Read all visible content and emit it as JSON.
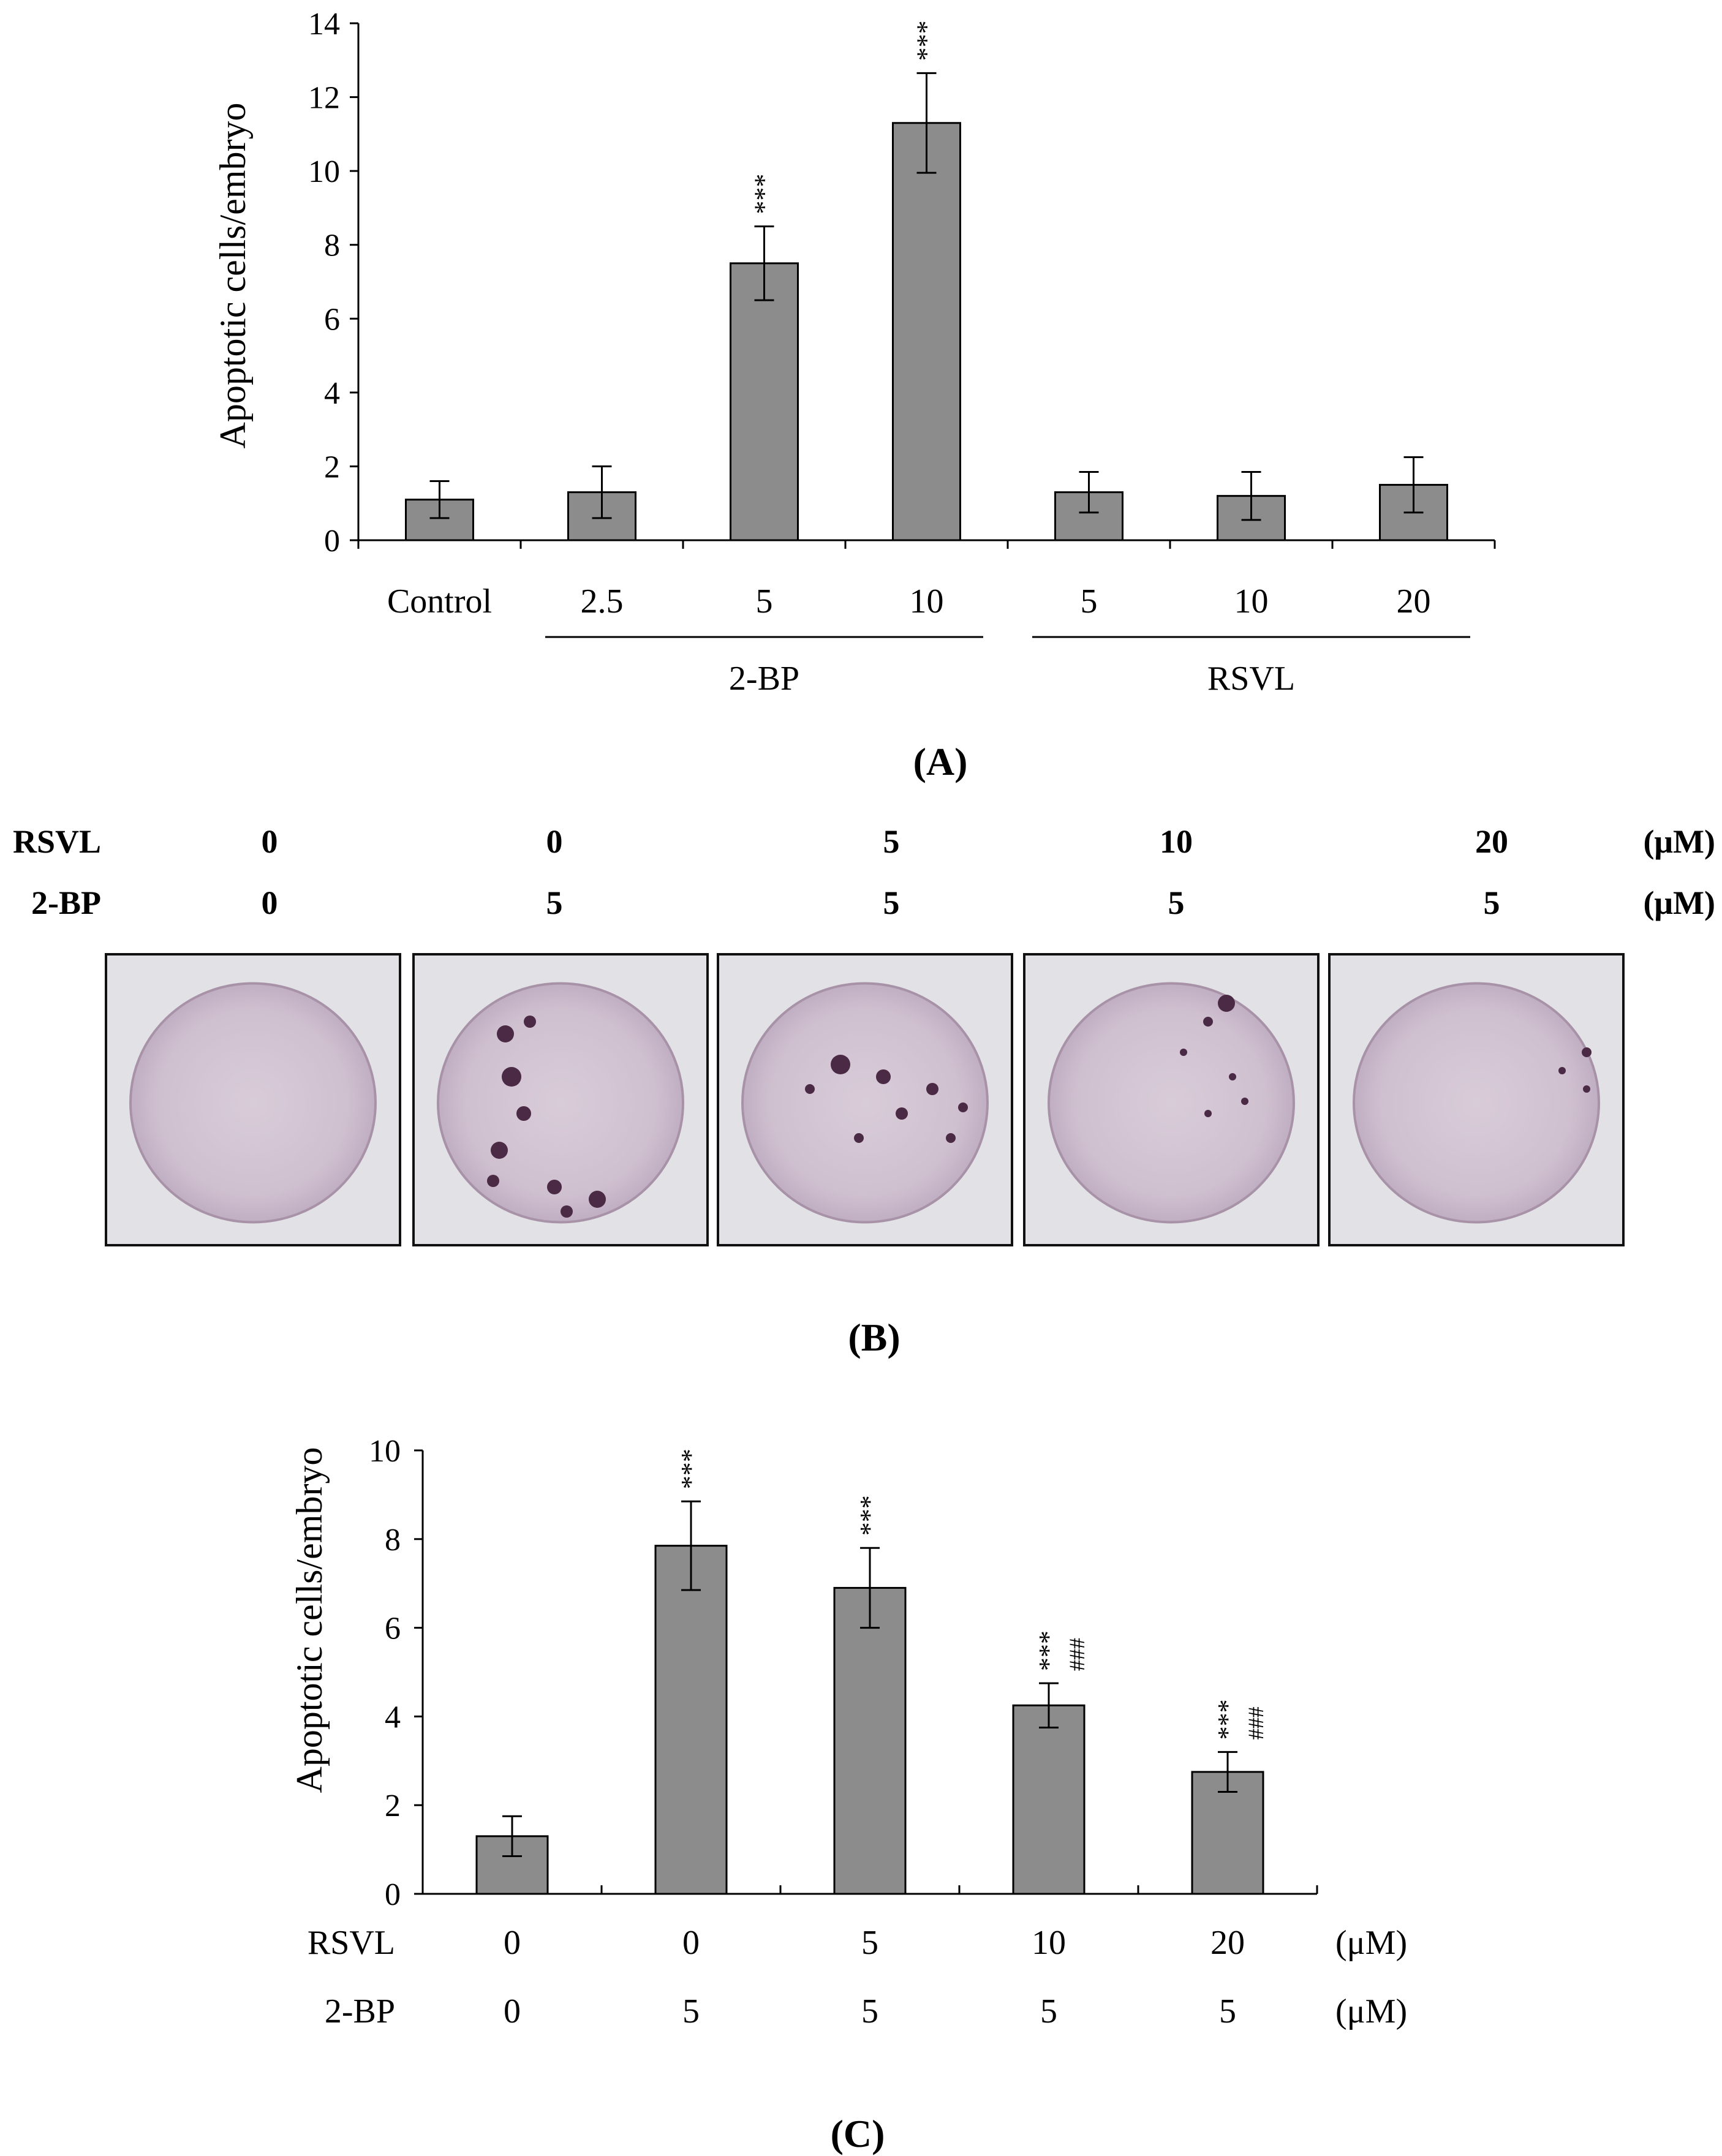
{
  "chart_data": [
    {
      "type": "bar",
      "panel": "(A)",
      "ylabel": "Apoptotic cells/embryo",
      "ylim": [
        0,
        14
      ],
      "yticks": [
        "0",
        "2",
        "4",
        "6",
        "8",
        "10",
        "12",
        "14"
      ],
      "categories": [
        "Control",
        "2.5",
        "5",
        "10",
        "5",
        "10",
        "20"
      ],
      "groups": [
        {
          "label": "2-BP",
          "from": 1,
          "to": 3
        },
        {
          "label": "RSVL",
          "from": 4,
          "to": 6
        }
      ],
      "values": [
        1.1,
        1.3,
        7.5,
        11.3,
        1.3,
        1.2,
        1.5
      ],
      "errors": [
        0.5,
        0.7,
        1.0,
        1.35,
        0.55,
        0.65,
        0.75
      ],
      "annotations": [
        "",
        "",
        "***",
        "***",
        "",
        "",
        ""
      ],
      "bar_color": "#8c8c8c"
    },
    {
      "type": "bar",
      "panel": "(C)",
      "ylabel": "Apoptotic cells/embryo",
      "ylim": [
        0,
        10
      ],
      "yticks": [
        "0",
        "2",
        "4",
        "6",
        "8",
        "10"
      ],
      "row_labels": [
        "RSVL",
        "2-BP"
      ],
      "rsvl": [
        "0",
        "0",
        "5",
        "10",
        "20"
      ],
      "bp": [
        "0",
        "5",
        "5",
        "5",
        "5"
      ],
      "unit": "(μM)",
      "values": [
        1.3,
        7.85,
        6.9,
        4.25,
        2.75
      ],
      "errors": [
        0.45,
        1.0,
        0.9,
        0.5,
        0.45
      ],
      "stars": [
        "",
        "***",
        "***",
        "***",
        "***"
      ],
      "hashes": [
        "",
        "",
        "",
        "###",
        "###"
      ],
      "bar_color": "#8c8c8c"
    }
  ],
  "panel_b": {
    "label": "(B)",
    "row_labels": [
      "RSVL",
      "2-BP"
    ],
    "rsvl": [
      "0",
      "0",
      "5",
      "10",
      "20"
    ],
    "bp": [
      "0",
      "5",
      "5",
      "5",
      "5"
    ],
    "unit": "(μM)"
  }
}
